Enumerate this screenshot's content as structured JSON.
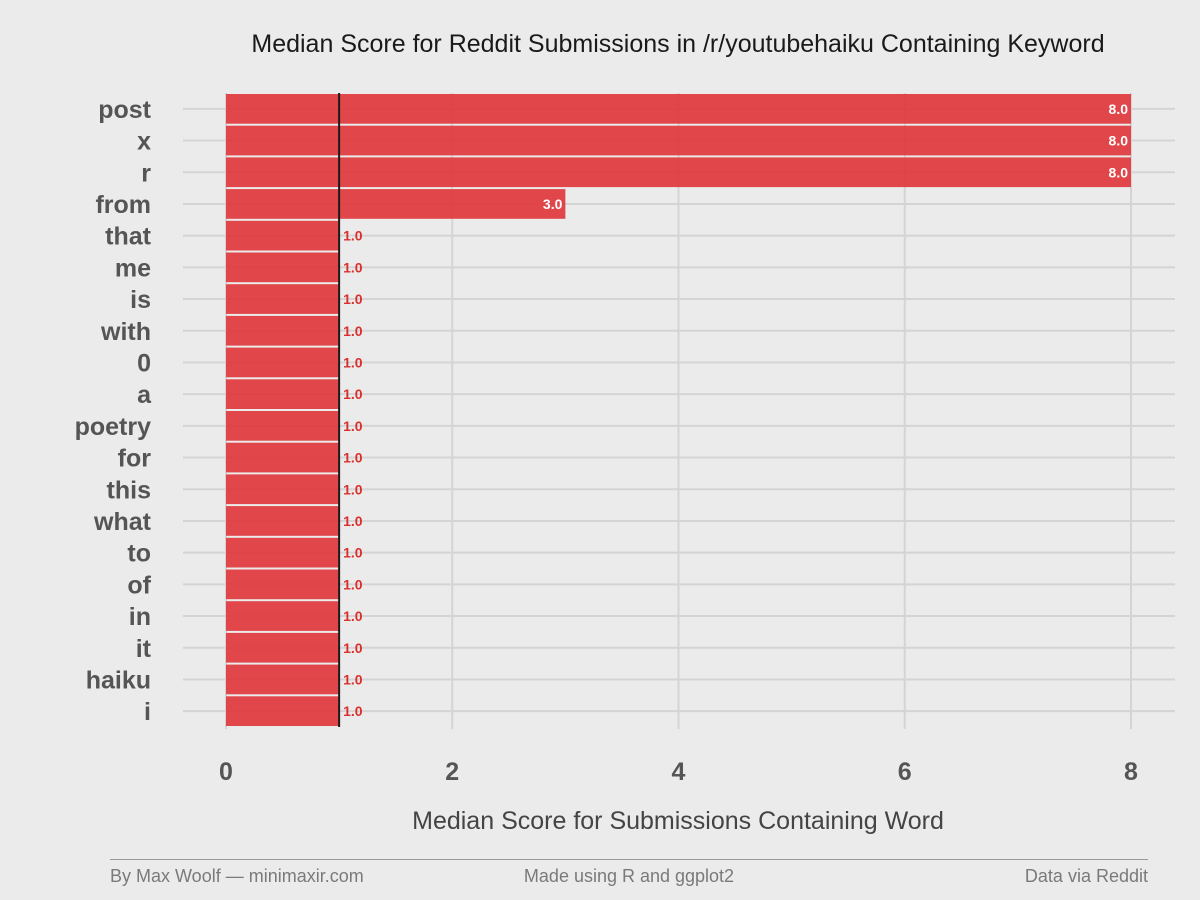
{
  "chart_data": {
    "type": "bar",
    "orientation": "horizontal",
    "title": "Median Score for Reddit Submissions in /r/youtubehaiku Containing Keyword",
    "xlabel": "Median Score for Submissions Containing Word",
    "ylabel": "",
    "categories": [
      "post",
      "x",
      "r",
      "from",
      "that",
      "me",
      "is",
      "with",
      "0",
      "a",
      "poetry",
      "for",
      "this",
      "what",
      "to",
      "of",
      "in",
      "it",
      "haiku",
      "i"
    ],
    "values": [
      8.0,
      8.0,
      8.0,
      3.0,
      1.0,
      1.0,
      1.0,
      1.0,
      1.0,
      1.0,
      1.0,
      1.0,
      1.0,
      1.0,
      1.0,
      1.0,
      1.0,
      1.0,
      1.0,
      1.0
    ],
    "data_labels": [
      "8.0",
      "8.0",
      "8.0",
      "3.0",
      "1.0",
      "1.0",
      "1.0",
      "1.0",
      "1.0",
      "1.0",
      "1.0",
      "1.0",
      "1.0",
      "1.0",
      "1.0",
      "1.0",
      "1.0",
      "1.0",
      "1.0",
      "1.0"
    ],
    "xlim": [
      0,
      8
    ],
    "xticks": [
      0,
      2,
      4,
      6,
      8
    ],
    "reference_line": 1,
    "grid": true,
    "legend": "none",
    "colors": {
      "bar": "#e0393e",
      "bar_label_inside": "#ffffff",
      "bar_label_outside": "#d9302e",
      "background": "#ebebeb",
      "grid": "#d4d4d4",
      "reference_line": "#1a1a1a",
      "axis_text": "#555555",
      "title": "#1a1a1a"
    }
  },
  "footer": {
    "left": "By Max Woolf — minimaxir.com",
    "center": "Made using R and ggplot2",
    "right": "Data via Reddit"
  }
}
